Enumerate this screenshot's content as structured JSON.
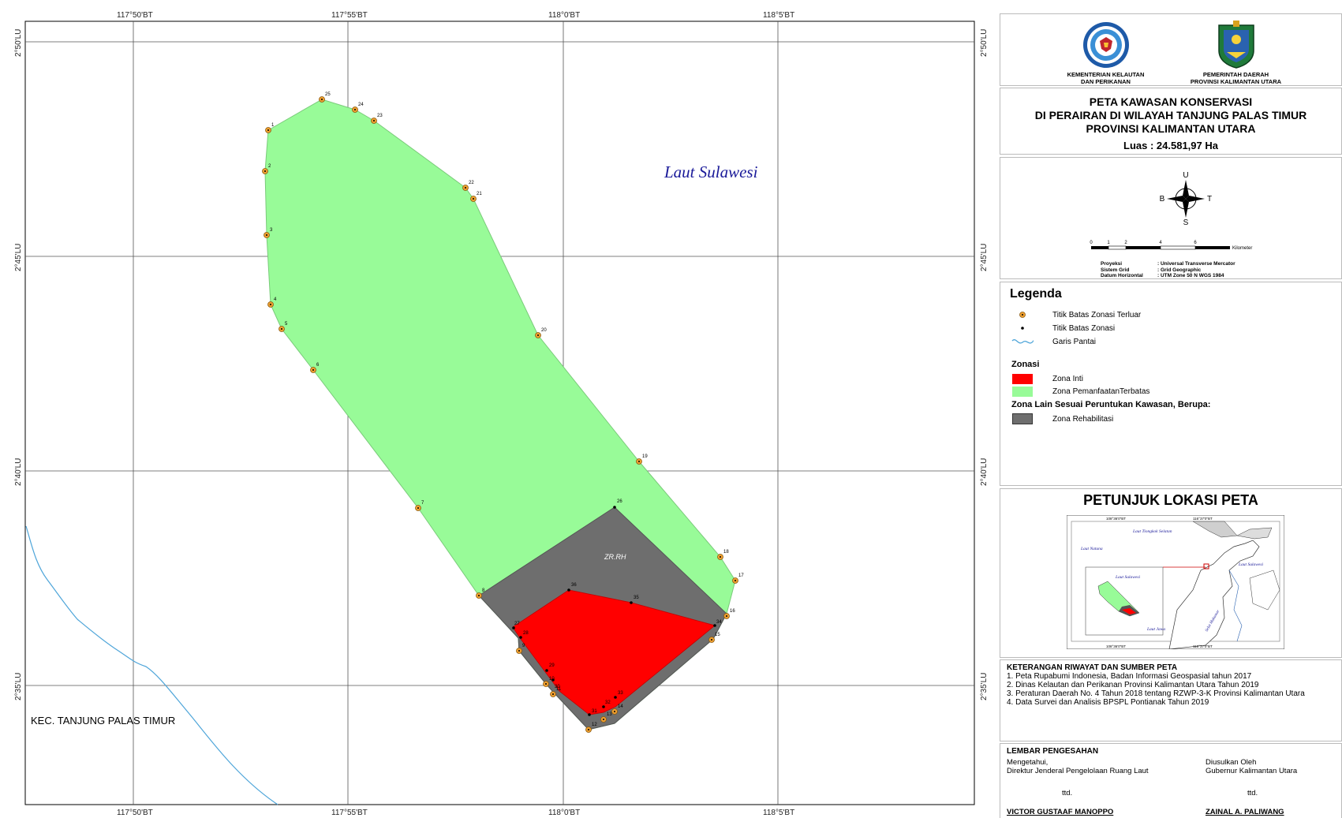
{
  "map": {
    "sea_label": "Laut Sulawesi",
    "land_label": "KEC. TANJUNG PALAS TIMUR",
    "zone_code": "ZR.RH",
    "colors": {
      "green": "#98fb98",
      "red": "#ff0000",
      "gray": "#6e6e6e",
      "coast": "#4ea5d9",
      "point": "#f0a030"
    },
    "lon_labels_top": [
      "117°50'BT",
      "117°55'BT",
      "118°0'BT",
      "118°5'BT"
    ],
    "lon_labels_bottom": [
      "117°50'BT",
      "117°55'BT",
      "118°0'BT",
      "118°5'BT"
    ],
    "lat_labels_left": [
      "2°50'LU",
      "2°45'LU",
      "2°40'LU",
      "2°35'LU"
    ],
    "lat_labels_right": [
      "2°50'LU",
      "2°45'LU",
      "2°40'LU",
      "2°35'LU"
    ]
  },
  "header": {
    "logo1_caption": [
      "KEMENTERIAN KELAUTAN",
      "DAN PERIKANAN"
    ],
    "logo2_caption": [
      "PEMERINTAH DAERAH",
      "PROVINSI KALIMANTAN UTARA"
    ]
  },
  "title": {
    "lines": [
      "PETA KAWASAN KONSERVASI",
      "DI PERAIRAN DI WILAYAH TANJUNG PALAS TIMUR",
      "PROVINSI KALIMANTAN UTARA"
    ],
    "luas": "Luas : 24.581,97 Ha"
  },
  "compass": {
    "n": "U",
    "s": "S",
    "e": "T",
    "w": "B"
  },
  "scale": {
    "ticks": [
      "0",
      "1",
      "2",
      "4",
      "6"
    ],
    "unit": "Kilometer",
    "proj_label": "Proyeksi",
    "proj_value": ": Universal Transverse Mercator",
    "grid_label": "Sistem Grid",
    "grid_value": ": Grid Geographic",
    "datum_label": "Datum Horizontal",
    "datum_value": ": UTM Zone 50 N WGS 1984"
  },
  "legend": {
    "title": "Legenda",
    "items": [
      "Titik Batas Zonasi Terluar",
      "Titik Batas Zonasi",
      "Garis Pantai"
    ],
    "zonasi_title": "Zonasi",
    "zonasi_items": [
      "Zona Inti",
      "Zona PemanfaatanTerbatas"
    ],
    "other_title": "Zona Lain Sesuai Peruntukan Kawasan, Berupa:",
    "other_items": [
      "Zona Rehabilitasi"
    ]
  },
  "petunjuk": {
    "title": "PETUNJUK LOKASI PETA",
    "sea_labels": [
      "Laut Tiongkok Selatan",
      "Laut Natuna",
      "Laut Sulawesi",
      "Laut Sulawesi",
      "Laut Jawa",
      "Selat Makassar"
    ],
    "coord_labels": [
      "108°36'0\"BT",
      "116°37'0\"BT"
    ]
  },
  "keterangan": {
    "title": "KETERANGAN RIWAYAT DAN SUMBER PETA",
    "items": [
      "1. Peta Rupabumi Indonesia, Badan Informasi Geospasial tahun 2017",
      "2. Dinas Kelautan dan Perikanan Provinsi Kalimantan Utara Tahun 2019",
      "3. Peraturan Daerah No. 4 Tahun 2018  tentang RZWP-3-K Provinsi  Kalimantan Utara",
      "4. Data Survei dan Analisis BPSPL Pontianak Tahun 2019"
    ]
  },
  "pengesahan": {
    "title": "LEMBAR PENGESAHAN",
    "left_1": "Mengetahui,",
    "left_2": "Direktur Jenderal Pengelolaan Ruang Laut",
    "left_ttd": "ttd.",
    "left_name": "VICTOR GUSTAAF MANOPPO",
    "right_1": "Diusulkan Oleh",
    "right_2": "Gubernur Kalimantan Utara",
    "right_ttd": "ttd.",
    "right_name": "ZAINAL A. PALIWANG"
  }
}
